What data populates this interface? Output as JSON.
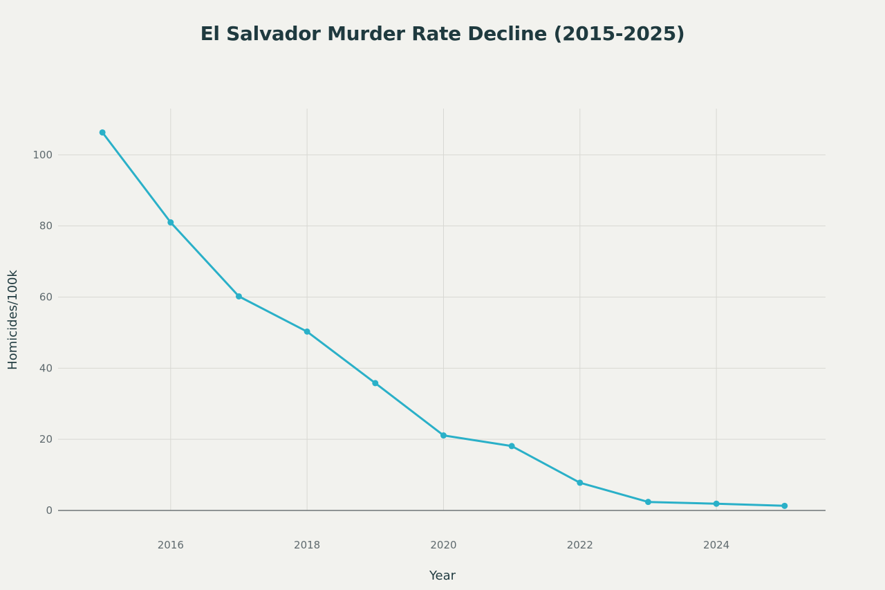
{
  "chart_data": {
    "type": "line",
    "title": "El Salvador Murder Rate Decline (2015-2025)",
    "xlabel": "Year",
    "ylabel": "Homicides/100k",
    "x": [
      2015,
      2016,
      2017,
      2018,
      2019,
      2020,
      2021,
      2022,
      2023,
      2024,
      2025
    ],
    "y": [
      106.3,
      81.0,
      60.2,
      50.3,
      35.8,
      21.1,
      18.1,
      7.8,
      2.4,
      1.9,
      1.3
    ],
    "xlim": [
      2014.35,
      2025.6
    ],
    "ylim": [
      0,
      113
    ],
    "x_ticks": [
      2016,
      2018,
      2020,
      2022,
      2024
    ],
    "y_ticks": [
      0,
      20,
      40,
      60,
      80,
      100
    ],
    "grid": true,
    "line_color": "#2ab0c8",
    "grid_color": "#d8d8d3",
    "zero_line_color": "#6e7476"
  }
}
